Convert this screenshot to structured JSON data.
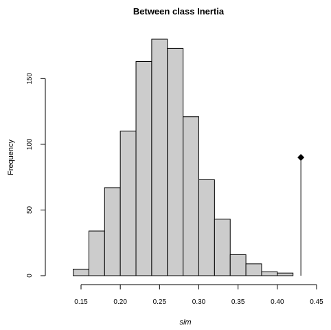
{
  "chart_data": {
    "type": "bar",
    "title": "Between class Inertia",
    "xlabel": "sim",
    "ylabel": "Frequency",
    "bin_edges": [
      0.14,
      0.16,
      0.18,
      0.2,
      0.22,
      0.24,
      0.26,
      0.28,
      0.3,
      0.32,
      0.34,
      0.36,
      0.38,
      0.4,
      0.42
    ],
    "values": [
      5,
      34,
      67,
      110,
      163,
      180,
      173,
      121,
      73,
      43,
      16,
      9,
      3,
      2
    ],
    "xlim": [
      0.14,
      0.45
    ],
    "ylim": [
      0,
      180
    ],
    "x_ticks": [
      0.15,
      0.2,
      0.25,
      0.3,
      0.35,
      0.4,
      0.45
    ],
    "x_tick_labels": [
      "0.15",
      "0.20",
      "0.25",
      "0.30",
      "0.35",
      "0.40",
      "0.45"
    ],
    "y_ticks": [
      0,
      50,
      100,
      150
    ],
    "y_tick_labels": [
      "0",
      "50",
      "100",
      "150"
    ],
    "observed_marker": {
      "x": 0.43,
      "height": 90,
      "shape": "diamond"
    },
    "grid": false,
    "bar_fill": "#cccccc",
    "bar_stroke": "#000000",
    "marker_color": "#000000"
  }
}
